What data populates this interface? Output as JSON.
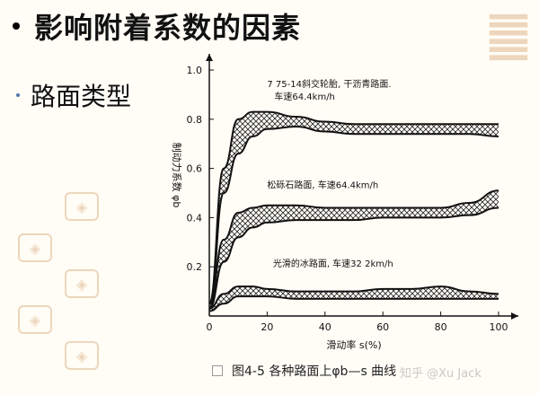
{
  "slide": {
    "title": "影响附着系数的因素",
    "subtitle": "路面类型",
    "caption": "图4-5 各种路面上φb—s 曲线",
    "watermark": "知乎 @Xu Jack"
  },
  "chart_data": {
    "type": "area",
    "xlabel": "滑动率 s(%)",
    "ylabel": "制动力系数 φb",
    "xlim": [
      0,
      100
    ],
    "ylim": [
      0,
      1.0
    ],
    "x_ticks": [
      "0",
      "20",
      "40",
      "60",
      "80",
      "100"
    ],
    "y_ticks": [
      "0",
      "0.2",
      "0.4",
      "0.6",
      "0.8",
      "1.0"
    ],
    "grid": false,
    "fill_pattern": "crosshatch",
    "series": [
      {
        "name": "7 75-14斜交轮胎, 干沥青路面, 车速64.4km/h",
        "x": [
          0,
          5,
          10,
          15,
          20,
          30,
          40,
          50,
          60,
          70,
          80,
          90,
          100
        ],
        "upper": [
          0.05,
          0.6,
          0.8,
          0.83,
          0.83,
          0.81,
          0.79,
          0.78,
          0.78,
          0.78,
          0.78,
          0.78,
          0.78
        ],
        "lower": [
          0.03,
          0.5,
          0.66,
          0.73,
          0.76,
          0.77,
          0.75,
          0.74,
          0.74,
          0.74,
          0.74,
          0.74,
          0.73
        ]
      },
      {
        "name": "松砾石路面, 车速64.4km/h",
        "x": [
          0,
          5,
          10,
          15,
          20,
          30,
          40,
          50,
          60,
          70,
          80,
          90,
          100
        ],
        "upper": [
          0.05,
          0.31,
          0.42,
          0.44,
          0.45,
          0.45,
          0.44,
          0.44,
          0.44,
          0.44,
          0.44,
          0.46,
          0.51
        ],
        "lower": [
          0.03,
          0.22,
          0.32,
          0.36,
          0.38,
          0.39,
          0.39,
          0.39,
          0.4,
          0.4,
          0.4,
          0.41,
          0.44
        ]
      },
      {
        "name": "光滑的冰路面, 车速32 2km/h",
        "x": [
          0,
          5,
          10,
          15,
          20,
          30,
          40,
          50,
          60,
          70,
          80,
          90,
          100
        ],
        "upper": [
          0.03,
          0.09,
          0.12,
          0.12,
          0.11,
          0.1,
          0.1,
          0.1,
          0.11,
          0.11,
          0.12,
          0.1,
          0.09
        ],
        "lower": [
          0.02,
          0.05,
          0.08,
          0.08,
          0.08,
          0.07,
          0.07,
          0.07,
          0.07,
          0.07,
          0.07,
          0.07,
          0.07
        ]
      }
    ]
  }
}
